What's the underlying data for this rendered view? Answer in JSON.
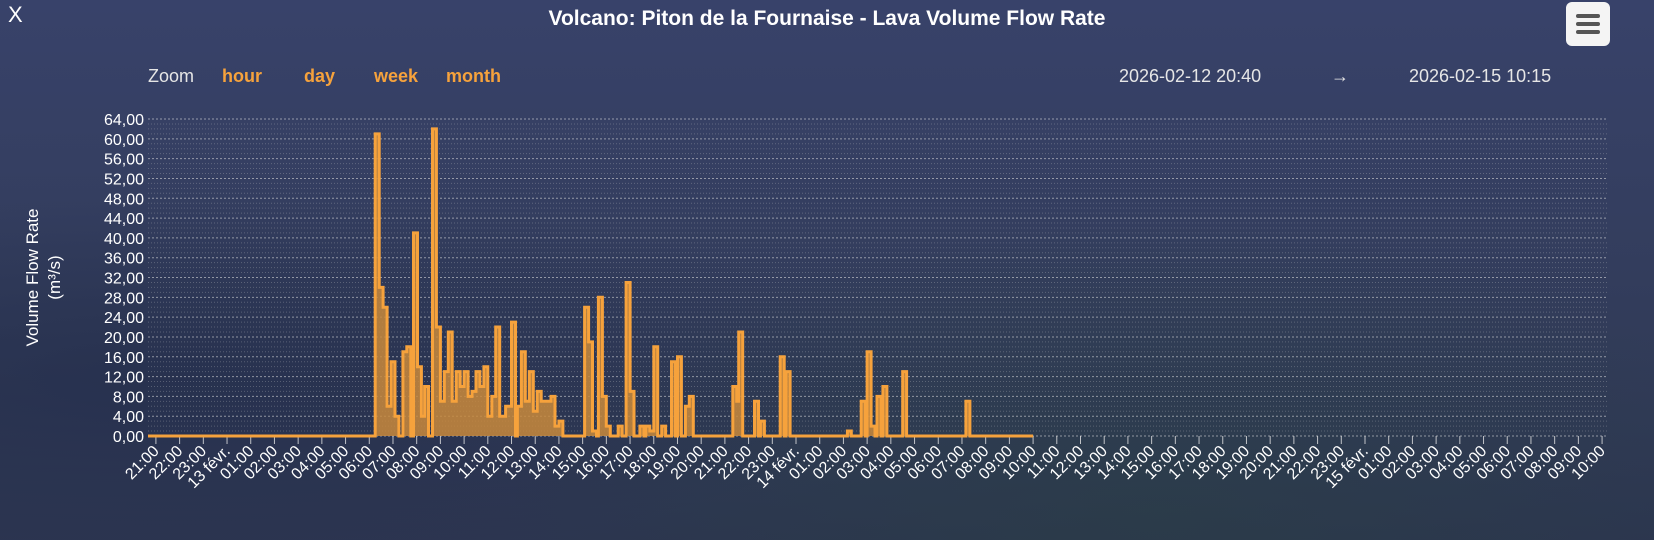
{
  "close_label": "X",
  "title": "Volcano: Piton de la Fournaise - Lava Volume Flow Rate",
  "zoom": {
    "label": "Zoom",
    "buttons": [
      "hour",
      "day",
      "week",
      "month"
    ]
  },
  "range": {
    "from": "2026-02-12 20:40",
    "arrow": "→",
    "to": "2026-02-15 10:15"
  },
  "colors": {
    "background": "#333d5c",
    "series_line": "#f6a23c",
    "series_fill": "#c98a3c",
    "zoom_active": "#f6a23c"
  },
  "chart_data": {
    "type": "area",
    "step": true,
    "ylabel": "Volume Flow Rate",
    "ylabel_unit": "(m³/s)",
    "ylim": [
      0,
      64
    ],
    "yticks": [
      "0,00",
      "4,00",
      "8,00",
      "12,00",
      "16,00",
      "20,00",
      "24,00",
      "28,00",
      "32,00",
      "36,00",
      "40,00",
      "44,00",
      "48,00",
      "52,00",
      "56,00",
      "60,00",
      "64,00"
    ],
    "grid": true,
    "x_start": "2026-02-12 20:40",
    "x_end": "2026-02-15 10:15",
    "xticks": [
      {
        "label": "21:00",
        "t": "2026-02-12 21:00"
      },
      {
        "label": "22:00",
        "t": "2026-02-12 22:00"
      },
      {
        "label": "23:00",
        "t": "2026-02-12 23:00"
      },
      {
        "label": "13 févr.",
        "t": "2026-02-13 00:00"
      },
      {
        "label": "01:00",
        "t": "2026-02-13 01:00"
      },
      {
        "label": "02:00",
        "t": "2026-02-13 02:00"
      },
      {
        "label": "03:00",
        "t": "2026-02-13 03:00"
      },
      {
        "label": "04:00",
        "t": "2026-02-13 04:00"
      },
      {
        "label": "05:00",
        "t": "2026-02-13 05:00"
      },
      {
        "label": "06:00",
        "t": "2026-02-13 06:00"
      },
      {
        "label": "07:00",
        "t": "2026-02-13 07:00"
      },
      {
        "label": "08:00",
        "t": "2026-02-13 08:00"
      },
      {
        "label": "09:00",
        "t": "2026-02-13 09:00"
      },
      {
        "label": "10:00",
        "t": "2026-02-13 10:00"
      },
      {
        "label": "11:00",
        "t": "2026-02-13 11:00"
      },
      {
        "label": "12:00",
        "t": "2026-02-13 12:00"
      },
      {
        "label": "13:00",
        "t": "2026-02-13 13:00"
      },
      {
        "label": "14:00",
        "t": "2026-02-13 14:00"
      },
      {
        "label": "15:00",
        "t": "2026-02-13 15:00"
      },
      {
        "label": "16:00",
        "t": "2026-02-13 16:00"
      },
      {
        "label": "17:00",
        "t": "2026-02-13 17:00"
      },
      {
        "label": "18:00",
        "t": "2026-02-13 18:00"
      },
      {
        "label": "19:00",
        "t": "2026-02-13 19:00"
      },
      {
        "label": "20:00",
        "t": "2026-02-13 20:00"
      },
      {
        "label": "21:00",
        "t": "2026-02-13 21:00"
      },
      {
        "label": "22:00",
        "t": "2026-02-13 22:00"
      },
      {
        "label": "23:00",
        "t": "2026-02-13 23:00"
      },
      {
        "label": "14 févr.",
        "t": "2026-02-14 00:00"
      },
      {
        "label": "01:00",
        "t": "2026-02-14 01:00"
      },
      {
        "label": "02:00",
        "t": "2026-02-14 02:00"
      },
      {
        "label": "03:00",
        "t": "2026-02-14 03:00"
      },
      {
        "label": "04:00",
        "t": "2026-02-14 04:00"
      },
      {
        "label": "05:00",
        "t": "2026-02-14 05:00"
      },
      {
        "label": "06:00",
        "t": "2026-02-14 06:00"
      },
      {
        "label": "07:00",
        "t": "2026-02-14 07:00"
      },
      {
        "label": "08:00",
        "t": "2026-02-14 08:00"
      },
      {
        "label": "09:00",
        "t": "2026-02-14 09:00"
      },
      {
        "label": "10:00",
        "t": "2026-02-14 10:00"
      },
      {
        "label": "11:00",
        "t": "2026-02-14 11:00"
      },
      {
        "label": "12:00",
        "t": "2026-02-14 12:00"
      },
      {
        "label": "13:00",
        "t": "2026-02-14 13:00"
      },
      {
        "label": "14:00",
        "t": "2026-02-14 14:00"
      },
      {
        "label": "15:00",
        "t": "2026-02-14 15:00"
      },
      {
        "label": "16:00",
        "t": "2026-02-14 16:00"
      },
      {
        "label": "17:00",
        "t": "2026-02-14 17:00"
      },
      {
        "label": "18:00",
        "t": "2026-02-14 18:00"
      },
      {
        "label": "19:00",
        "t": "2026-02-14 19:00"
      },
      {
        "label": "20:00",
        "t": "2026-02-14 20:00"
      },
      {
        "label": "21:00",
        "t": "2026-02-14 21:00"
      },
      {
        "label": "22:00",
        "t": "2026-02-14 22:00"
      },
      {
        "label": "23:00",
        "t": "2026-02-14 23:00"
      },
      {
        "label": "15 févr.",
        "t": "2026-02-15 00:00"
      },
      {
        "label": "01:00",
        "t": "2026-02-15 01:00"
      },
      {
        "label": "02:00",
        "t": "2026-02-15 02:00"
      },
      {
        "label": "03:00",
        "t": "2026-02-15 03:00"
      },
      {
        "label": "04:00",
        "t": "2026-02-15 04:00"
      },
      {
        "label": "05:00",
        "t": "2026-02-15 05:00"
      },
      {
        "label": "06:00",
        "t": "2026-02-15 06:00"
      },
      {
        "label": "07:00",
        "t": "2026-02-15 07:00"
      },
      {
        "label": "08:00",
        "t": "2026-02-15 08:00"
      },
      {
        "label": "09:00",
        "t": "2026-02-15 09:00"
      },
      {
        "label": "10:00",
        "t": "2026-02-15 10:00"
      }
    ],
    "series": [
      {
        "steps": [
          [
            "2026-02-12 20:40",
            0
          ],
          [
            "2026-02-13 06:15",
            61
          ],
          [
            "2026-02-13 06:25",
            30
          ],
          [
            "2026-02-13 06:35",
            26
          ],
          [
            "2026-02-13 06:45",
            6
          ],
          [
            "2026-02-13 06:55",
            15
          ],
          [
            "2026-02-13 07:05",
            4
          ],
          [
            "2026-02-13 07:15",
            0
          ],
          [
            "2026-02-13 07:25",
            17
          ],
          [
            "2026-02-13 07:35",
            18
          ],
          [
            "2026-02-13 07:45",
            0
          ],
          [
            "2026-02-13 07:52",
            41
          ],
          [
            "2026-02-13 08:02",
            14
          ],
          [
            "2026-02-13 08:12",
            4
          ],
          [
            "2026-02-13 08:20",
            10
          ],
          [
            "2026-02-13 08:30",
            0
          ],
          [
            "2026-02-13 08:40",
            62
          ],
          [
            "2026-02-13 08:50",
            22
          ],
          [
            "2026-02-13 09:00",
            7
          ],
          [
            "2026-02-13 09:10",
            13
          ],
          [
            "2026-02-13 09:20",
            21
          ],
          [
            "2026-02-13 09:30",
            7
          ],
          [
            "2026-02-13 09:40",
            13
          ],
          [
            "2026-02-13 09:50",
            10
          ],
          [
            "2026-02-13 10:00",
            13
          ],
          [
            "2026-02-13 10:10",
            8
          ],
          [
            "2026-02-13 10:20",
            9
          ],
          [
            "2026-02-13 10:30",
            13
          ],
          [
            "2026-02-13 10:40",
            10
          ],
          [
            "2026-02-13 10:50",
            14
          ],
          [
            "2026-02-13 11:00",
            4
          ],
          [
            "2026-02-13 11:10",
            8
          ],
          [
            "2026-02-13 11:20",
            22
          ],
          [
            "2026-02-13 11:30",
            4
          ],
          [
            "2026-02-13 11:45",
            6
          ],
          [
            "2026-02-13 12:00",
            23
          ],
          [
            "2026-02-13 12:10",
            0
          ],
          [
            "2026-02-13 12:15",
            6
          ],
          [
            "2026-02-13 12:25",
            17
          ],
          [
            "2026-02-13 12:35",
            7
          ],
          [
            "2026-02-13 12:45",
            13
          ],
          [
            "2026-02-13 12:55",
            5
          ],
          [
            "2026-02-13 13:05",
            9
          ],
          [
            "2026-02-13 13:15",
            7
          ],
          [
            "2026-02-13 13:40",
            8
          ],
          [
            "2026-02-13 13:50",
            2
          ],
          [
            "2026-02-13 14:00",
            3
          ],
          [
            "2026-02-13 14:10",
            0
          ],
          [
            "2026-02-13 15:05",
            26
          ],
          [
            "2026-02-13 15:15",
            19
          ],
          [
            "2026-02-13 15:25",
            1
          ],
          [
            "2026-02-13 15:35",
            0
          ],
          [
            "2026-02-13 15:40",
            28
          ],
          [
            "2026-02-13 15:50",
            8
          ],
          [
            "2026-02-13 16:00",
            2
          ],
          [
            "2026-02-13 16:10",
            0
          ],
          [
            "2026-02-13 16:30",
            2
          ],
          [
            "2026-02-13 16:40",
            0
          ],
          [
            "2026-02-13 16:50",
            31
          ],
          [
            "2026-02-13 17:00",
            9
          ],
          [
            "2026-02-13 17:10",
            0
          ],
          [
            "2026-02-13 17:25",
            2
          ],
          [
            "2026-02-13 17:35",
            0
          ],
          [
            "2026-02-13 17:40",
            2
          ],
          [
            "2026-02-13 17:50",
            1
          ],
          [
            "2026-02-13 18:00",
            18
          ],
          [
            "2026-02-13 18:10",
            0
          ],
          [
            "2026-02-13 18:20",
            2
          ],
          [
            "2026-02-13 18:30",
            0
          ],
          [
            "2026-02-13 18:45",
            15
          ],
          [
            "2026-02-13 18:55",
            0
          ],
          [
            "2026-02-13 19:00",
            16
          ],
          [
            "2026-02-13 19:10",
            0
          ],
          [
            "2026-02-13 19:20",
            6
          ],
          [
            "2026-02-13 19:30",
            8
          ],
          [
            "2026-02-13 19:40",
            0
          ],
          [
            "2026-02-13 21:20",
            10
          ],
          [
            "2026-02-13 21:30",
            7
          ],
          [
            "2026-02-13 21:35",
            21
          ],
          [
            "2026-02-13 21:45",
            0
          ],
          [
            "2026-02-13 22:15",
            7
          ],
          [
            "2026-02-13 22:25",
            0
          ],
          [
            "2026-02-13 22:30",
            3
          ],
          [
            "2026-02-13 22:40",
            0
          ],
          [
            "2026-02-13 23:20",
            16
          ],
          [
            "2026-02-13 23:30",
            0
          ],
          [
            "2026-02-13 23:35",
            13
          ],
          [
            "2026-02-13 23:45",
            0
          ],
          [
            "2026-02-14 02:10",
            1
          ],
          [
            "2026-02-14 02:20",
            0
          ],
          [
            "2026-02-14 02:45",
            7
          ],
          [
            "2026-02-14 02:55",
            0
          ],
          [
            "2026-02-14 03:00",
            17
          ],
          [
            "2026-02-14 03:10",
            2
          ],
          [
            "2026-02-14 03:20",
            0
          ],
          [
            "2026-02-14 03:25",
            8
          ],
          [
            "2026-02-14 03:35",
            0
          ],
          [
            "2026-02-14 03:40",
            10
          ],
          [
            "2026-02-14 03:50",
            0
          ],
          [
            "2026-02-14 04:30",
            13
          ],
          [
            "2026-02-14 04:40",
            0
          ],
          [
            "2026-02-14 07:10",
            7
          ],
          [
            "2026-02-14 07:20",
            0
          ],
          [
            "2026-02-14 10:00",
            0
          ]
        ]
      }
    ]
  }
}
